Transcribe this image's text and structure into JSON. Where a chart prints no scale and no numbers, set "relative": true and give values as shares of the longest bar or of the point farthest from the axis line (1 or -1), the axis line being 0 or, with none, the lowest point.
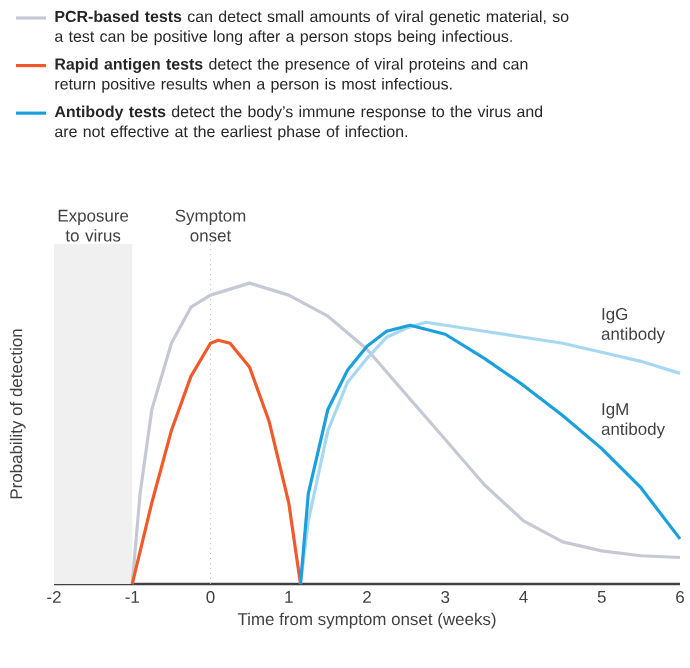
{
  "chart_data": {
    "type": "line",
    "relative": true,
    "xlabel": "Time from symptom onset (weeks)",
    "ylabel": "Probability of detection",
    "xlim": [
      -2,
      6
    ],
    "xticks": [
      -2,
      -1,
      0,
      1,
      2,
      3,
      4,
      5,
      6
    ],
    "legend": "top",
    "series": [
      {
        "name": "**PCR-based tests** can detect small amounts of viral genetic material, so a test can be positive long after a person stops being infectious.",
        "color": "#c4c9d4",
        "x": [
          -1,
          -0.9,
          -0.75,
          -0.5,
          -0.25,
          0,
          0.5,
          1,
          1.5,
          2,
          2.5,
          3,
          3.5,
          4,
          4.5,
          5,
          5.5,
          6
        ],
        "values": [
          0,
          0.3,
          0.58,
          0.8,
          0.92,
          0.96,
          1,
          0.96,
          0.89,
          0.78,
          0.63,
          0.48,
          0.33,
          0.21,
          0.14,
          0.11,
          0.094,
          0.088
        ]
      },
      {
        "name": "**Rapid antigen tests** detect the presence of viral proteins and can return positive results when a person is most infectious.",
        "color": "#f0592a",
        "x": [
          -1,
          -0.75,
          -0.5,
          -0.25,
          0,
          0.1,
          0.25,
          0.5,
          0.75,
          1,
          1.15
        ],
        "values": [
          0,
          0.27,
          0.51,
          0.69,
          0.8,
          0.81,
          0.8,
          0.72,
          0.54,
          0.27,
          0
        ]
      },
      {
        "color": "#a7d8f2",
        "x": [
          1.15,
          1.25,
          1.5,
          1.75,
          2,
          2.25,
          2.5,
          2.75,
          3,
          3.5,
          4,
          4.5,
          5,
          5.5,
          6
        ],
        "values": [
          0,
          0.21,
          0.51,
          0.67,
          0.75,
          0.82,
          0.85,
          0.87,
          0.86,
          0.84,
          0.82,
          0.8,
          0.77,
          0.74,
          0.7
        ]
      },
      {
        "name": "**Antibody tests** detect the body’s immune response to the virus and are not effective at the earliest phase of infection.",
        "color": "#1aa0dc",
        "x": [
          1.15,
          1.25,
          1.5,
          1.75,
          2,
          2.25,
          2.55,
          3,
          3.5,
          4,
          4.5,
          5,
          5.5,
          6
        ],
        "values": [
          0,
          0.3,
          0.58,
          0.71,
          0.79,
          0.84,
          0.86,
          0.83,
          0.75,
          0.66,
          0.56,
          0.45,
          0.32,
          0.15
        ]
      }
    ],
    "bands": [
      {
        "axis": "x",
        "from": -2,
        "to": -1,
        "label": "Exposure to virus",
        "color": "#f0f0f0"
      }
    ],
    "ref_lines": [
      {
        "axis": "x",
        "value": 0,
        "label": "Symptom onset",
        "color": "#bbbbbb",
        "line_style": "dotted"
      }
    ],
    "annotations": [
      "IgG antibody",
      "IgM antibody"
    ]
  }
}
